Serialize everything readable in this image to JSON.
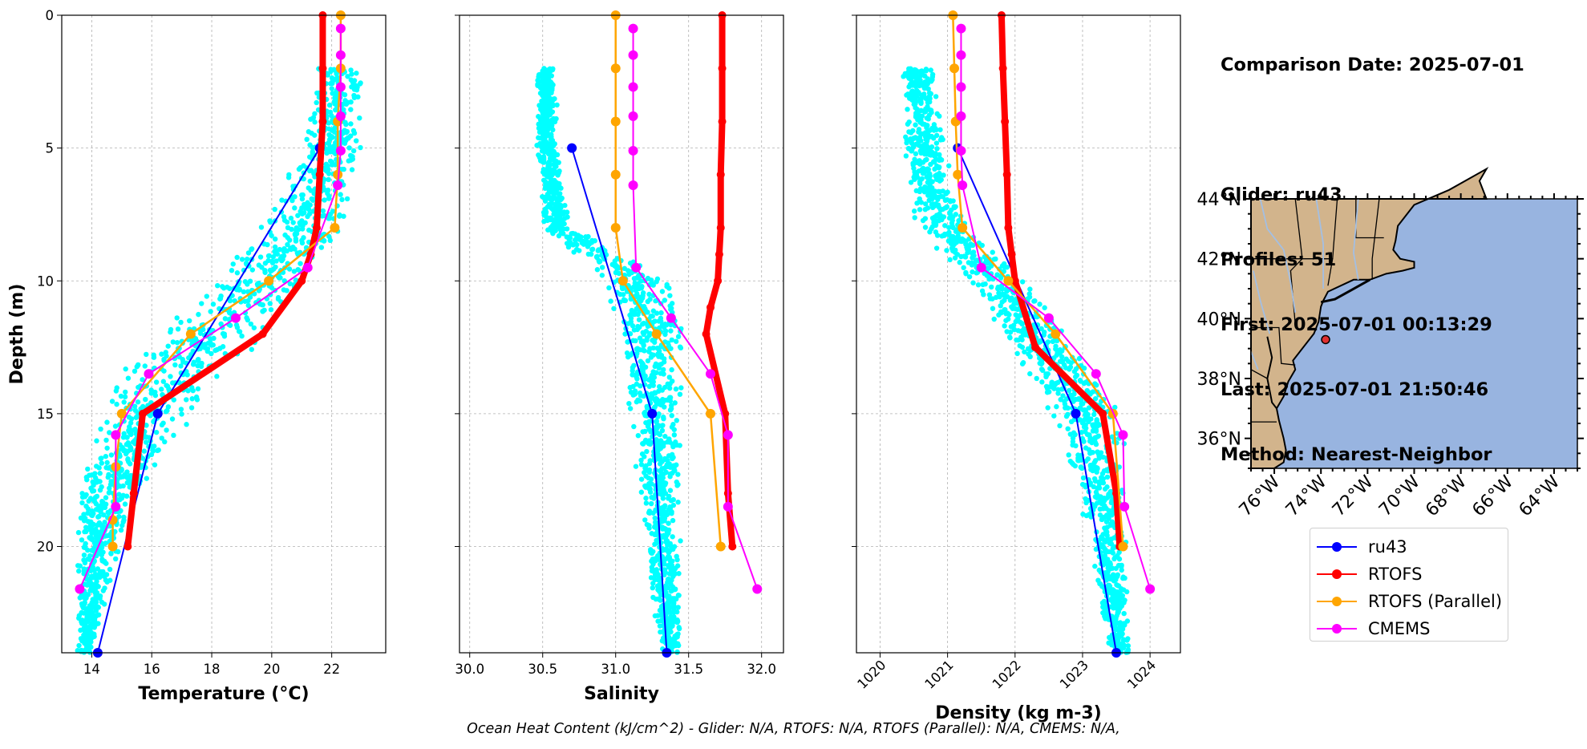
{
  "info": {
    "title": "Comparison Date: 2025-07-01",
    "glider": "Glider: ru43",
    "profiles": "Profiles: 51",
    "first": "First: 2025-07-01 00:13:29",
    "last": "Last: 2025-07-01 21:50:46",
    "method": "Method: Nearest-Neighbor"
  },
  "footer": "Ocean Heat Content (kJ/cm^2) - Glider: N/A,  RTOFS: N/A,  RTOFS (Parallel): N/A,  CMEMS: N/A,",
  "colors": {
    "ru43": "#0000ff",
    "rtofs": "#ff0000",
    "rtofs_parallel": "#ffa500",
    "cmems": "#ff00ff",
    "glider_scatter": "#00ffff",
    "land": "#d2b48c",
    "ocean": "#98b4e0"
  },
  "legend": [
    {
      "label": "ru43",
      "color": "#0000ff"
    },
    {
      "label": "RTOFS",
      "color": "#ff0000"
    },
    {
      "label": "RTOFS (Parallel)",
      "color": "#ffa500"
    },
    {
      "label": "CMEMS",
      "color": "#ff00ff"
    }
  ],
  "chart_data": [
    {
      "type": "line",
      "xlabel": "Temperature (°C)",
      "ylabel": "Depth (m)",
      "xlim": [
        13,
        23.8
      ],
      "ylim": [
        24,
        0
      ],
      "xticks": [
        14,
        16,
        18,
        20,
        22
      ],
      "yticks": [
        0,
        5,
        10,
        15,
        20
      ],
      "grid": true,
      "scatter": {
        "name": "glider profiles",
        "x_range_by_depth": [
          [
            2,
            21.5,
            23.2
          ],
          [
            5,
            21.0,
            23.0
          ],
          [
            8,
            19.5,
            22.5
          ],
          [
            10,
            18.0,
            21.5
          ],
          [
            12,
            16.0,
            20.0
          ],
          [
            14,
            14.5,
            18.0
          ],
          [
            16,
            14.0,
            17.0
          ],
          [
            18,
            13.5,
            15.5
          ],
          [
            20,
            13.5,
            15.0
          ],
          [
            24,
            13.5,
            14.0
          ]
        ]
      },
      "series": [
        {
          "name": "ru43",
          "x": [
            21.6,
            16.2,
            14.2
          ],
          "y": [
            5,
            15,
            24
          ]
        },
        {
          "name": "RTOFS",
          "x": [
            21.7,
            21.7,
            21.7,
            21.6,
            21.5,
            21.3,
            21.0,
            19.7,
            15.7,
            15.4,
            15.2
          ],
          "y": [
            0,
            2,
            4,
            6,
            8,
            9,
            10,
            12,
            15,
            18,
            20
          ]
        },
        {
          "name": "RTOFS (Parallel)",
          "x": [
            22.3,
            22.3,
            22.2,
            22.2,
            22.1,
            19.9,
            17.3,
            15.0,
            14.8,
            14.7,
            14.7
          ],
          "y": [
            0,
            2,
            4,
            6,
            8,
            10,
            12,
            15,
            17,
            19,
            20
          ]
        },
        {
          "name": "CMEMS",
          "x": [
            22.3,
            22.3,
            22.3,
            22.3,
            22.3,
            22.2,
            21.2,
            18.8,
            15.9,
            14.8,
            14.8,
            13.6
          ],
          "y": [
            0.5,
            1.5,
            2.7,
            3.8,
            5.1,
            6.4,
            9.5,
            11.4,
            13.5,
            15.8,
            18.5,
            21.6
          ]
        }
      ]
    },
    {
      "type": "line",
      "xlabel": "Salinity",
      "xlim": [
        29.93,
        32.15
      ],
      "ylim": [
        24,
        0
      ],
      "xticks": [
        30.0,
        30.5,
        31.0,
        31.5,
        32.0
      ],
      "yticks": [
        0,
        5,
        10,
        15,
        20
      ],
      "grid": true,
      "scatter": {
        "name": "glider profiles",
        "x_range_by_depth": [
          [
            2,
            30.45,
            30.6
          ],
          [
            5,
            30.45,
            30.6
          ],
          [
            8,
            30.5,
            30.7
          ],
          [
            10,
            30.9,
            31.4
          ],
          [
            12,
            31.0,
            31.5
          ],
          [
            15,
            31.1,
            31.45
          ],
          [
            18,
            31.15,
            31.45
          ],
          [
            24,
            31.3,
            31.45
          ]
        ]
      },
      "series": [
        {
          "name": "ru43",
          "x": [
            30.7,
            31.25,
            31.35
          ],
          "y": [
            5,
            15,
            24
          ]
        },
        {
          "name": "RTOFS",
          "x": [
            31.73,
            31.73,
            31.73,
            31.72,
            31.72,
            31.71,
            31.7,
            31.65,
            31.62,
            31.75,
            31.77,
            31.8
          ],
          "y": [
            0,
            2,
            4,
            6,
            8,
            9,
            10,
            11,
            12,
            15,
            18,
            20
          ]
        },
        {
          "name": "RTOFS (Parallel)",
          "x": [
            31.0,
            31.0,
            31.0,
            31.0,
            31.0,
            31.05,
            31.28,
            31.65,
            31.72
          ],
          "y": [
            0,
            2,
            4,
            6,
            8,
            10,
            12,
            15,
            20
          ]
        },
        {
          "name": "CMEMS",
          "x": [
            31.12,
            31.12,
            31.12,
            31.12,
            31.12,
            31.12,
            31.14,
            31.38,
            31.65,
            31.77,
            31.77,
            31.97
          ],
          "y": [
            0.5,
            1.5,
            2.7,
            3.8,
            5.1,
            6.4,
            9.5,
            11.4,
            13.5,
            15.8,
            18.5,
            21.6
          ]
        }
      ]
    },
    {
      "type": "line",
      "xlabel": "Density (kg m-3)",
      "xlim": [
        1019.65,
        1024.45
      ],
      "ylim": [
        24,
        0
      ],
      "xticks": [
        1020,
        1021,
        1022,
        1023,
        1024
      ],
      "yticks": [
        0,
        5,
        10,
        15,
        20
      ],
      "grid": true,
      "scatter": {
        "name": "glider profiles",
        "x_range_by_depth": [
          [
            2,
            1020.3,
            1020.8
          ],
          [
            5,
            1020.3,
            1021.0
          ],
          [
            8,
            1020.5,
            1021.3
          ],
          [
            10,
            1021.3,
            1022.2
          ],
          [
            12,
            1021.8,
            1022.8
          ],
          [
            15,
            1022.5,
            1023.6
          ],
          [
            18,
            1022.9,
            1023.7
          ],
          [
            24,
            1023.4,
            1023.7
          ]
        ]
      },
      "series": [
        {
          "name": "ru43",
          "x": [
            1021.15,
            1022.9,
            1023.5
          ],
          "y": [
            5,
            15,
            24
          ]
        },
        {
          "name": "RTOFS",
          "x": [
            1021.8,
            1021.82,
            1021.85,
            1021.88,
            1021.9,
            1021.95,
            1022.0,
            1022.3,
            1023.3,
            1023.5,
            1023.55
          ],
          "y": [
            0,
            2,
            4,
            6,
            8,
            9,
            10,
            12.5,
            15,
            18,
            20
          ]
        },
        {
          "name": "RTOFS (Parallel)",
          "x": [
            1021.08,
            1021.1,
            1021.12,
            1021.15,
            1021.22,
            1021.9,
            1022.6,
            1023.45,
            1023.6
          ],
          "y": [
            0,
            2,
            4,
            6,
            8,
            10,
            12,
            15,
            20
          ]
        },
        {
          "name": "CMEMS",
          "x": [
            1021.2,
            1021.2,
            1021.2,
            1021.2,
            1021.2,
            1021.22,
            1021.5,
            1022.5,
            1023.2,
            1023.6,
            1023.62,
            1024.0
          ],
          "y": [
            0.5,
            1.5,
            2.7,
            3.8,
            5.1,
            6.4,
            9.5,
            11.4,
            13.5,
            15.8,
            18.5,
            21.6
          ]
        }
      ]
    },
    {
      "type": "map",
      "lon_range": [
        -77.0,
        -63.0
      ],
      "lat_range": [
        35.0,
        44.0
      ],
      "lat_ticks": [
        "44°N",
        "42°N",
        "40°N",
        "38°N",
        "36°N"
      ],
      "lon_ticks": [
        "76°W",
        "74°W",
        "72°W",
        "70°W",
        "68°W",
        "66°W",
        "64°W"
      ],
      "marker": {
        "name": "glider position",
        "lon": -73.8,
        "lat": 39.3
      }
    }
  ]
}
